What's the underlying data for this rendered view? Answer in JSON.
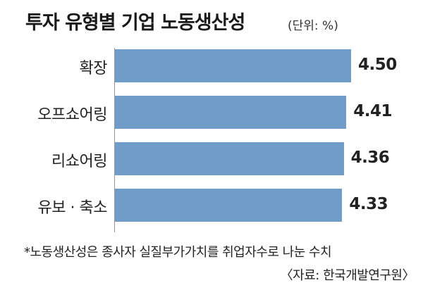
{
  "title": "투자 유형별 기업 노동생산성",
  "unit": "(단위: %)",
  "chart_data": {
    "type": "bar",
    "orientation": "horizontal",
    "title": "투자 유형별 기업 노동생산성",
    "categories": [
      "확장",
      "오프쇼어링",
      "리쇼어링",
      "유보 · 축소"
    ],
    "values": [
      4.5,
      4.41,
      4.36,
      4.33
    ],
    "value_labels": [
      "4.50",
      "4.41",
      "4.36",
      "4.33"
    ],
    "bar_color": "#6f9cc9"
  },
  "footnote": "*노동생산성은 종사자 실질부가가치를 취업자수로 나눈 수치",
  "source": "〈자료: 한국개발연구원〉"
}
